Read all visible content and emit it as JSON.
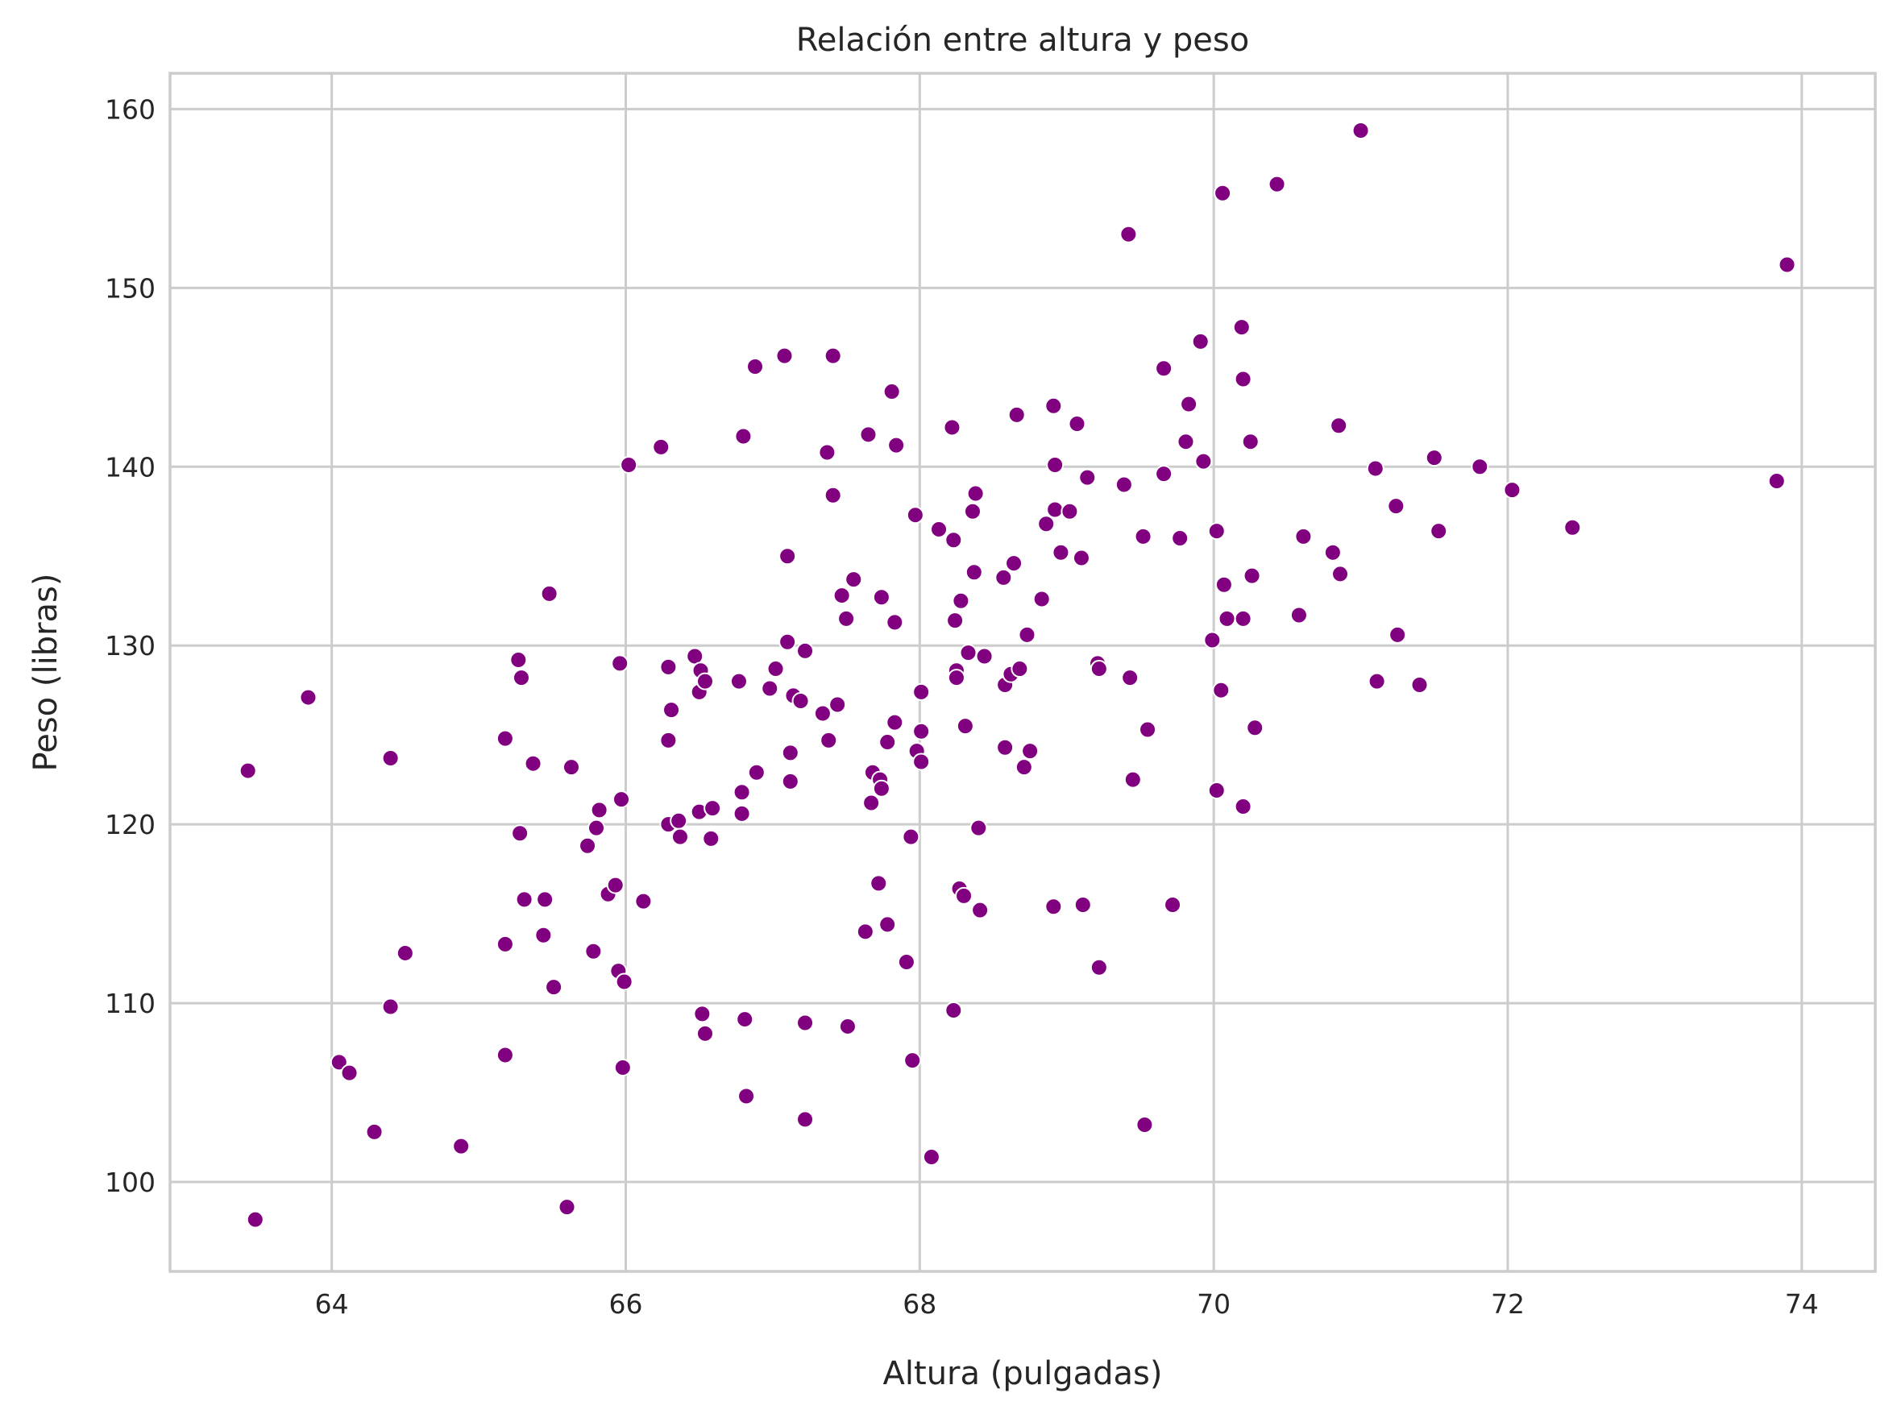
{
  "chart_data": {
    "type": "scatter",
    "title": "Relación entre altura y peso",
    "xlabel": "Altura (pulgadas)",
    "ylabel": "Peso (libras)",
    "xlim": [
      62.9,
      74.5
    ],
    "ylim": [
      95,
      162
    ],
    "xticks": [
      64,
      66,
      68,
      70,
      72,
      74
    ],
    "yticks": [
      100,
      110,
      120,
      130,
      140,
      150,
      160
    ],
    "grid": true,
    "marker_color": "#800080",
    "marker_edge_color": "#ffffff",
    "points": [
      [
        63.43,
        123.0
      ],
      [
        63.48,
        97.9
      ],
      [
        63.84,
        127.1
      ],
      [
        64.05,
        106.7
      ],
      [
        64.12,
        106.1
      ],
      [
        64.29,
        102.8
      ],
      [
        64.4,
        123.7
      ],
      [
        64.4,
        109.8
      ],
      [
        64.5,
        112.8
      ],
      [
        64.88,
        102.0
      ],
      [
        65.18,
        124.8
      ],
      [
        65.18,
        113.3
      ],
      [
        65.18,
        107.1
      ],
      [
        65.27,
        129.2
      ],
      [
        65.28,
        119.5
      ],
      [
        65.29,
        128.2
      ],
      [
        65.31,
        115.8
      ],
      [
        65.37,
        123.4
      ],
      [
        65.44,
        113.8
      ],
      [
        65.45,
        115.8
      ],
      [
        65.48,
        132.9
      ],
      [
        65.51,
        110.9
      ],
      [
        65.6,
        98.6
      ],
      [
        65.63,
        123.2
      ],
      [
        65.74,
        118.8
      ],
      [
        65.78,
        112.9
      ],
      [
        65.8,
        119.8
      ],
      [
        65.82,
        120.8
      ],
      [
        65.88,
        116.1
      ],
      [
        65.93,
        116.6
      ],
      [
        65.95,
        111.8
      ],
      [
        65.96,
        129.0
      ],
      [
        65.97,
        121.4
      ],
      [
        65.98,
        106.4
      ],
      [
        65.99,
        111.2
      ],
      [
        66.02,
        140.1
      ],
      [
        66.12,
        115.7
      ],
      [
        66.24,
        141.1
      ],
      [
        66.29,
        128.8
      ],
      [
        66.29,
        124.7
      ],
      [
        66.29,
        120.0
      ],
      [
        66.31,
        126.4
      ],
      [
        66.36,
        120.2
      ],
      [
        66.37,
        119.3
      ],
      [
        66.47,
        129.4
      ],
      [
        66.5,
        127.4
      ],
      [
        66.5,
        120.7
      ],
      [
        66.51,
        128.6
      ],
      [
        66.52,
        109.4
      ],
      [
        66.54,
        128.0
      ],
      [
        66.54,
        108.3
      ],
      [
        66.58,
        119.2
      ],
      [
        66.59,
        120.9
      ],
      [
        66.77,
        128.0
      ],
      [
        66.79,
        121.8
      ],
      [
        66.79,
        120.6
      ],
      [
        66.8,
        141.7
      ],
      [
        66.81,
        109.1
      ],
      [
        66.82,
        104.8
      ],
      [
        66.88,
        145.6
      ],
      [
        66.89,
        122.9
      ],
      [
        66.98,
        127.6
      ],
      [
        67.02,
        128.7
      ],
      [
        67.08,
        146.2
      ],
      [
        67.1,
        135.0
      ],
      [
        67.1,
        130.2
      ],
      [
        67.12,
        124.0
      ],
      [
        67.12,
        122.4
      ],
      [
        67.14,
        127.2
      ],
      [
        67.19,
        126.9
      ],
      [
        67.22,
        129.7
      ],
      [
        67.22,
        108.9
      ],
      [
        67.22,
        103.5
      ],
      [
        67.34,
        126.2
      ],
      [
        67.37,
        140.8
      ],
      [
        67.38,
        124.7
      ],
      [
        67.41,
        146.2
      ],
      [
        67.41,
        138.4
      ],
      [
        67.44,
        126.7
      ],
      [
        67.47,
        132.8
      ],
      [
        67.5,
        131.5
      ],
      [
        67.51,
        108.7
      ],
      [
        67.55,
        133.7
      ],
      [
        67.63,
        114.0
      ],
      [
        67.65,
        141.8
      ],
      [
        67.67,
        121.2
      ],
      [
        67.68,
        122.9
      ],
      [
        67.72,
        116.7
      ],
      [
        67.73,
        122.5
      ],
      [
        67.74,
        132.7
      ],
      [
        67.74,
        122.0
      ],
      [
        67.78,
        124.6
      ],
      [
        67.78,
        114.4
      ],
      [
        67.81,
        144.2
      ],
      [
        67.83,
        131.3
      ],
      [
        67.83,
        125.7
      ],
      [
        67.84,
        141.2
      ],
      [
        67.91,
        112.3
      ],
      [
        67.94,
        119.3
      ],
      [
        67.95,
        106.8
      ],
      [
        67.97,
        137.3
      ],
      [
        67.98,
        124.1
      ],
      [
        68.01,
        127.4
      ],
      [
        68.01,
        125.2
      ],
      [
        68.01,
        123.5
      ],
      [
        68.08,
        101.4
      ],
      [
        68.13,
        136.5
      ],
      [
        68.22,
        142.2
      ],
      [
        68.23,
        135.9
      ],
      [
        68.24,
        131.4
      ],
      [
        68.25,
        128.6
      ],
      [
        68.25,
        128.2
      ],
      [
        68.23,
        109.6
      ],
      [
        68.27,
        116.4
      ],
      [
        68.28,
        132.5
      ],
      [
        68.3,
        116.0
      ],
      [
        68.31,
        125.5
      ],
      [
        68.33,
        129.6
      ],
      [
        68.36,
        137.5
      ],
      [
        68.37,
        134.1
      ],
      [
        68.38,
        138.5
      ],
      [
        68.4,
        119.8
      ],
      [
        68.41,
        115.2
      ],
      [
        68.44,
        129.4
      ],
      [
        68.57,
        133.8
      ],
      [
        68.58,
        127.8
      ],
      [
        68.58,
        124.3
      ],
      [
        68.62,
        128.4
      ],
      [
        68.64,
        134.6
      ],
      [
        68.66,
        142.9
      ],
      [
        68.68,
        128.7
      ],
      [
        68.71,
        123.2
      ],
      [
        68.73,
        130.6
      ],
      [
        68.75,
        124.1
      ],
      [
        68.83,
        132.6
      ],
      [
        68.86,
        136.8
      ],
      [
        68.91,
        143.4
      ],
      [
        68.92,
        140.1
      ],
      [
        68.92,
        137.6
      ],
      [
        68.91,
        115.4
      ],
      [
        68.96,
        135.2
      ],
      [
        69.02,
        137.5
      ],
      [
        69.07,
        142.4
      ],
      [
        69.1,
        134.9
      ],
      [
        69.11,
        115.5
      ],
      [
        69.14,
        139.4
      ],
      [
        69.21,
        129.0
      ],
      [
        69.22,
        128.7
      ],
      [
        69.22,
        112.0
      ],
      [
        69.39,
        139.0
      ],
      [
        69.42,
        153.0
      ],
      [
        69.43,
        128.2
      ],
      [
        69.45,
        122.5
      ],
      [
        69.52,
        136.1
      ],
      [
        69.53,
        103.2
      ],
      [
        69.55,
        125.3
      ],
      [
        69.66,
        145.5
      ],
      [
        69.66,
        139.6
      ],
      [
        69.72,
        115.5
      ],
      [
        69.77,
        136.0
      ],
      [
        69.81,
        141.4
      ],
      [
        69.83,
        143.5
      ],
      [
        69.91,
        147.0
      ],
      [
        69.93,
        140.3
      ],
      [
        69.99,
        130.3
      ],
      [
        70.02,
        136.4
      ],
      [
        70.02,
        121.9
      ],
      [
        70.05,
        127.5
      ],
      [
        70.06,
        155.3
      ],
      [
        70.07,
        133.4
      ],
      [
        70.09,
        131.5
      ],
      [
        70.19,
        147.8
      ],
      [
        70.2,
        144.9
      ],
      [
        70.2,
        131.5
      ],
      [
        70.2,
        121.0
      ],
      [
        70.25,
        141.4
      ],
      [
        70.26,
        133.9
      ],
      [
        70.28,
        125.4
      ],
      [
        70.43,
        155.8
      ],
      [
        70.58,
        131.7
      ],
      [
        70.61,
        136.1
      ],
      [
        70.81,
        135.2
      ],
      [
        70.85,
        142.3
      ],
      [
        70.86,
        134.0
      ],
      [
        71.0,
        158.8
      ],
      [
        71.1,
        139.9
      ],
      [
        71.11,
        128.0
      ],
      [
        71.24,
        137.8
      ],
      [
        71.25,
        130.6
      ],
      [
        71.4,
        127.8
      ],
      [
        71.5,
        140.5
      ],
      [
        71.53,
        136.4
      ],
      [
        71.81,
        140.0
      ],
      [
        72.03,
        138.7
      ],
      [
        72.44,
        136.6
      ],
      [
        73.83,
        139.2
      ],
      [
        73.9,
        151.3
      ]
    ]
  }
}
